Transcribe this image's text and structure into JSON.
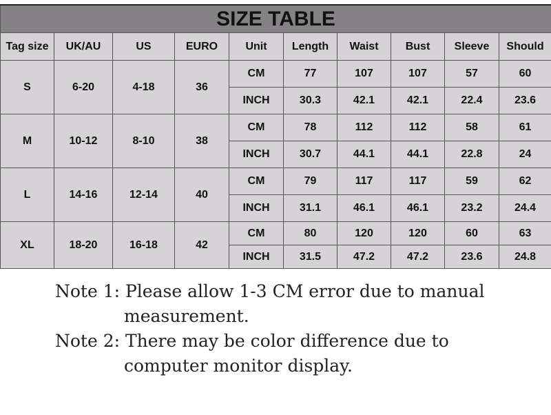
{
  "title": "SIZE TABLE",
  "headers": [
    "Tag size",
    "UK/AU",
    "US",
    "EURO",
    "Unit",
    "Length",
    "Waist",
    "Bust",
    "Sleeve",
    "Should"
  ],
  "sizes": [
    {
      "tag": "S",
      "uk": "6-20",
      "us": "4-18",
      "euro": "36",
      "cm": [
        "CM",
        "77",
        "107",
        "107",
        "57",
        "60"
      ],
      "inch": [
        "INCH",
        "30.3",
        "42.1",
        "42.1",
        "22.4",
        "23.6"
      ]
    },
    {
      "tag": "M",
      "uk": "10-12",
      "us": "8-10",
      "euro": "38",
      "cm": [
        "CM",
        "78",
        "112",
        "112",
        "58",
        "61"
      ],
      "inch": [
        "INCH",
        "30.7",
        "44.1",
        "44.1",
        "22.8",
        "24"
      ]
    },
    {
      "tag": "L",
      "uk": "14-16",
      "us": "12-14",
      "euro": "40",
      "cm": [
        "CM",
        "79",
        "117",
        "117",
        "59",
        "62"
      ],
      "inch": [
        "INCH",
        "31.1",
        "46.1",
        "46.1",
        "23.2",
        "24.4"
      ]
    },
    {
      "tag": "XL",
      "uk": "18-20",
      "us": "16-18",
      "euro": "42",
      "cm": [
        "CM",
        "80",
        "120",
        "120",
        "60",
        "63"
      ],
      "inch": [
        "INCH",
        "31.5",
        "47.2",
        "47.2",
        "23.6",
        "24.8"
      ]
    }
  ],
  "notes": {
    "note1_line1": "Note 1: Please allow 1-3 CM error due to manual",
    "note1_line2": "measurement.",
    "note2_line1": "Note 2: There may be color difference due to",
    "note2_line2": "computer monitor display."
  }
}
